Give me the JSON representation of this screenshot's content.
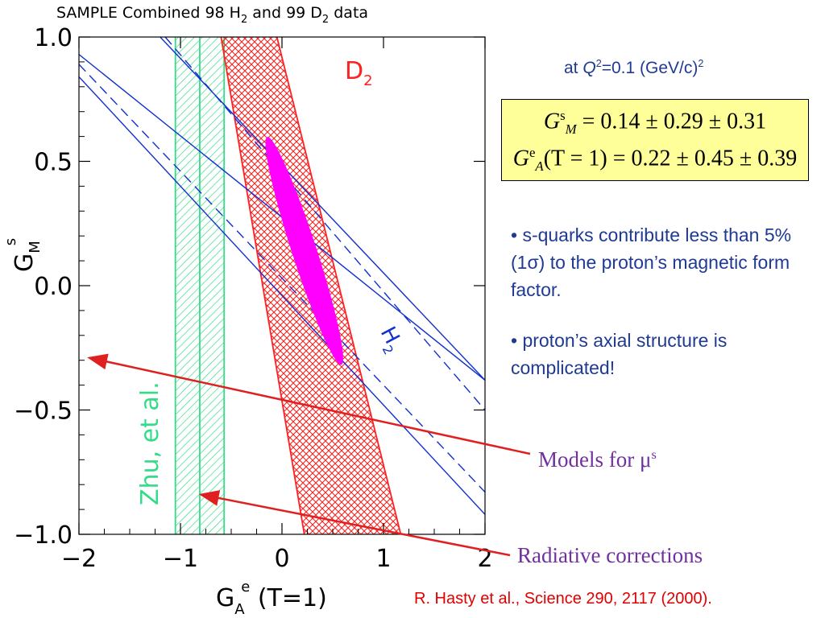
{
  "chart_data": {
    "type": "scatter",
    "title": "SAMPLE Combined 98 H",
    "title_sub1": "2",
    "title_mid": " and 99 D",
    "title_sub2": "2",
    "title_end": " data",
    "xlabel": {
      "main": "G",
      "sub": "A",
      "sup": "e",
      "suffix": "  (T=1)"
    },
    "ylabel": {
      "main": "G",
      "sub": "M",
      "sup": "s"
    },
    "xlim": [
      -2,
      2
    ],
    "ylim": [
      -1,
      1
    ],
    "xticks": [
      {
        "value": -2,
        "label": "−2"
      },
      {
        "value": -1,
        "label": "−1"
      },
      {
        "value": 0,
        "label": "0"
      },
      {
        "value": 1,
        "label": "1"
      },
      {
        "value": 2,
        "label": "2"
      }
    ],
    "yticks": [
      {
        "value": -1,
        "label": "−1.0"
      },
      {
        "value": -0.5,
        "label": "−0.5"
      },
      {
        "value": 0,
        "label": "0.0"
      },
      {
        "value": 0.5,
        "label": "0.5"
      },
      {
        "value": 1,
        "label": "1.0"
      }
    ],
    "grid": false,
    "bands": {
      "theory_zhu": {
        "label": "Zhu, et al.",
        "color": "#33dd88",
        "x_min": -1.05,
        "x_max": -0.57,
        "x_center": -0.81
      },
      "d2": {
        "label": "D",
        "label_sub": "2",
        "color": "#ff2020",
        "left_edge": [
          [
            -0.6,
            1.0
          ],
          [
            0.22,
            -1.0
          ]
        ],
        "right_edge": [
          [
            -0.05,
            1.0
          ],
          [
            1.17,
            -1.0
          ]
        ]
      },
      "h2": {
        "label": "H",
        "label_sub": "2",
        "color": "#1030d0",
        "solid_lines": [
          [
            [
              -2.0,
              0.93
            ],
            [
              2.0,
              -0.38
            ]
          ],
          [
            [
              -2.0,
              0.84
            ],
            [
              2.0,
              -0.92
            ]
          ],
          [
            [
              -1.2,
              1.0
            ],
            [
              2.0,
              -0.38
            ]
          ]
        ],
        "dashed_lines": [
          [
            [
              -2.0,
              0.89
            ],
            [
              2.0,
              -0.83
            ]
          ],
          [
            [
              -1.15,
              1.0
            ],
            [
              2.0,
              -0.5
            ]
          ]
        ]
      }
    },
    "ellipse": {
      "color": "#ff00ff",
      "center": [
        0.22,
        0.14
      ],
      "semi_axis_x": 0.22,
      "semi_axis_y": 0.45
    },
    "annotations": [
      {
        "name": "models",
        "label": "Models for μ",
        "label_sup": "s",
        "target": [
          -1.9,
          -0.29
        ]
      },
      {
        "name": "radiative",
        "label": "Radiative corrections",
        "target": [
          -0.8,
          -0.84
        ]
      }
    ]
  },
  "q2": {
    "prefix": "at ",
    "var": "Q",
    "sup": "2",
    "value": "=0.1 (GeV/c)",
    "unit_sup": "2"
  },
  "results": {
    "row1": {
      "lhs": "G",
      "sup": "s",
      "sub": "M",
      "rhs": " = 0.14 ± 0.29 ± 0.31"
    },
    "row2": {
      "lhs": "G",
      "sup": "e",
      "sub": "A",
      "arg": "(T = 1)",
      "rhs": " = 0.22 ± 0.45 ± 0.39"
    }
  },
  "bullets": [
    "• s-quarks contribute less than 5% (1σ) to the proton’s magnetic form factor.",
    "• proton’s axial structure is complicated!"
  ],
  "citation": "R. Hasty et al., Science 290, 2117 (2000).",
  "colors": {
    "annotation_arrow": "#e02020",
    "annotation_text": "#7030a0",
    "body_text": "#1f3a93",
    "citation": "#e00000",
    "result_box": "#ffff99"
  }
}
